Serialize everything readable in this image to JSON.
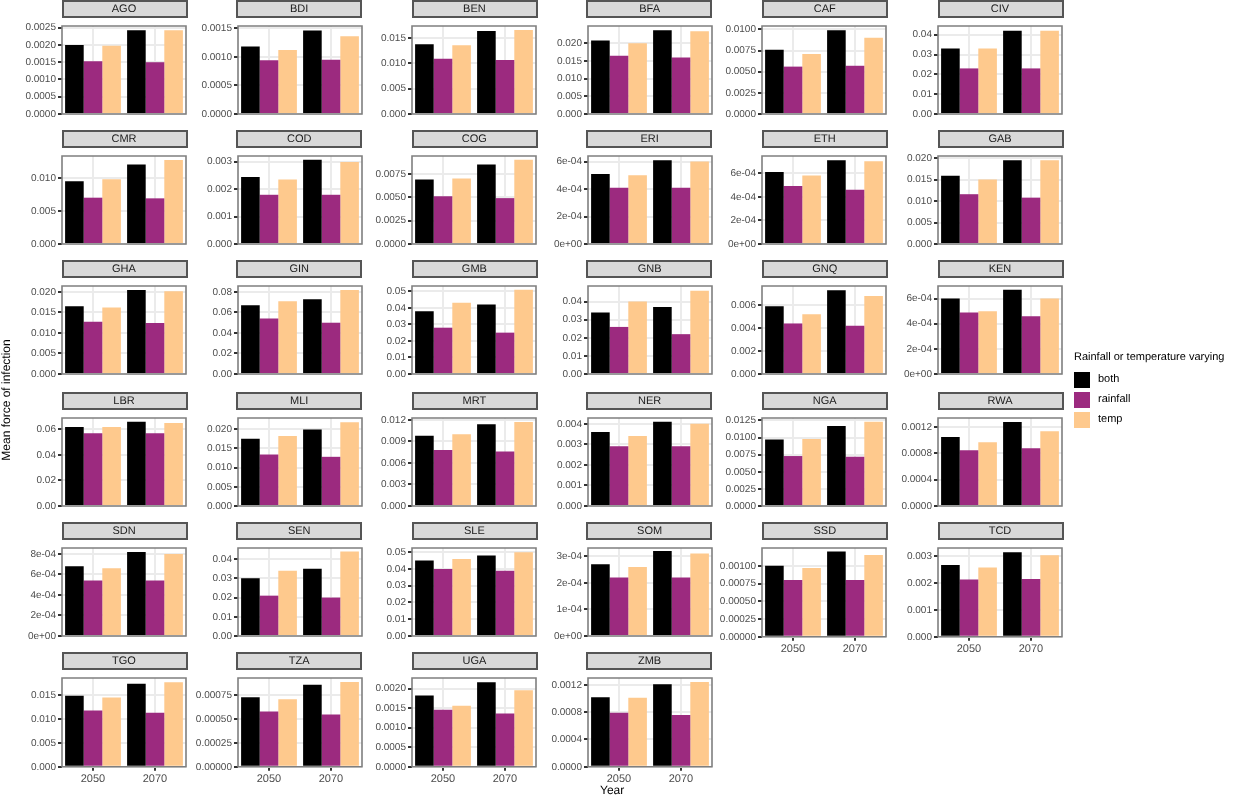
{
  "chart_data": [
    {
      "type": "bar",
      "title": "AGO",
      "annotations": [
        "Year",
        "Mean force of infection"
      ],
      "legend_title": "Rainfall or temperature varying",
      "legend": "right",
      "grid": true,
      "tick_labels": "y",
      "categories": [
        "2050",
        "2070"
      ],
      "ylim": [
        0,
        0.00255
      ],
      "yticks": [
        {
          "value": 0,
          "label": "0.0000"
        },
        {
          "value": 0.0005,
          "label": "0.0005"
        },
        {
          "value": 0.001,
          "label": "0.0010"
        },
        {
          "value": 0.0015,
          "label": "0.0015"
        },
        {
          "value": 0.002,
          "label": "0.0020"
        },
        {
          "value": 0.0025,
          "label": "0.0025"
        }
      ],
      "series": [
        {
          "name": "both",
          "color": "#000000",
          "values": [
            0.002,
            0.00243
          ]
        },
        {
          "name": "rainfall",
          "color": "#9c2a7f",
          "values": [
            0.00153,
            0.0015
          ]
        },
        {
          "name": "temp",
          "color": "#fec98d",
          "values": [
            0.00198,
            0.00243
          ]
        }
      ]
    },
    {
      "type": "bar",
      "title": "BDI",
      "grid": true,
      "tick_labels": "y",
      "categories": [
        "2050",
        "2070"
      ],
      "ylim": [
        0,
        0.00154
      ],
      "yticks": [
        {
          "value": 0,
          "label": "0.0000"
        },
        {
          "value": 0.0005,
          "label": "0.0005"
        },
        {
          "value": 0.001,
          "label": "0.0010"
        },
        {
          "value": 0.0015,
          "label": "0.0015"
        }
      ],
      "series": [
        {
          "color": "#000000",
          "values": [
            0.00118,
            0.00146
          ]
        },
        {
          "color": "#9c2a7f",
          "values": [
            0.00094,
            0.00095
          ]
        },
        {
          "color": "#fec98d",
          "values": [
            0.00112,
            0.00136
          ]
        }
      ]
    },
    {
      "type": "bar",
      "title": "BEN",
      "grid": true,
      "tick_labels": "y",
      "categories": [
        "2050",
        "2070"
      ],
      "ylim": [
        0,
        0.0174
      ],
      "yticks": [
        {
          "value": 0,
          "label": "0.000"
        },
        {
          "value": 0.005,
          "label": "0.005"
        },
        {
          "value": 0.01,
          "label": "0.010"
        },
        {
          "value": 0.015,
          "label": "0.015"
        }
      ],
      "series": [
        {
          "color": "#000000",
          "values": [
            0.0138,
            0.0164
          ]
        },
        {
          "color": "#9c2a7f",
          "values": [
            0.0109,
            0.0107
          ]
        },
        {
          "color": "#fec98d",
          "values": [
            0.0136,
            0.0166
          ]
        }
      ]
    },
    {
      "type": "bar",
      "title": "BFA",
      "grid": true,
      "tick_labels": "y",
      "categories": [
        "2050",
        "2070"
      ],
      "ylim": [
        0,
        0.0249
      ],
      "yticks": [
        {
          "value": 0,
          "label": "0.000"
        },
        {
          "value": 0.005,
          "label": "0.005"
        },
        {
          "value": 0.01,
          "label": "0.010"
        },
        {
          "value": 0.015,
          "label": "0.015"
        },
        {
          "value": 0.02,
          "label": "0.020"
        }
      ],
      "series": [
        {
          "color": "#000000",
          "values": [
            0.0208,
            0.0237
          ]
        },
        {
          "color": "#9c2a7f",
          "values": [
            0.0165,
            0.016
          ]
        },
        {
          "color": "#fec98d",
          "values": [
            0.02,
            0.0234
          ]
        }
      ]
    },
    {
      "type": "bar",
      "title": "CAF",
      "grid": true,
      "tick_labels": "y",
      "categories": [
        "2050",
        "2070"
      ],
      "ylim": [
        0,
        0.0104
      ],
      "yticks": [
        {
          "value": 0,
          "label": "0.0000"
        },
        {
          "value": 0.0025,
          "label": "0.0025"
        },
        {
          "value": 0.005,
          "label": "0.0050"
        },
        {
          "value": 0.0075,
          "label": "0.0075"
        },
        {
          "value": 0.01,
          "label": "0.0100"
        }
      ],
      "series": [
        {
          "color": "#000000",
          "values": [
            0.0076,
            0.0099
          ]
        },
        {
          "color": "#9c2a7f",
          "values": [
            0.0056,
            0.0057
          ]
        },
        {
          "color": "#fec98d",
          "values": [
            0.0071,
            0.009
          ]
        }
      ]
    },
    {
      "type": "bar",
      "title": "CIV",
      "grid": true,
      "tick_labels": "y",
      "categories": [
        "2050",
        "2070"
      ],
      "ylim": [
        0,
        0.0444
      ],
      "yticks": [
        {
          "value": 0,
          "label": "0.00"
        },
        {
          "value": 0.01,
          "label": "0.01"
        },
        {
          "value": 0.02,
          "label": "0.02"
        },
        {
          "value": 0.03,
          "label": "0.03"
        },
        {
          "value": 0.04,
          "label": "0.04"
        }
      ],
      "series": [
        {
          "color": "#000000",
          "values": [
            0.033,
            0.042
          ]
        },
        {
          "color": "#9c2a7f",
          "values": [
            0.023,
            0.023
          ]
        },
        {
          "color": "#fec98d",
          "values": [
            0.033,
            0.042
          ]
        }
      ]
    },
    {
      "type": "bar",
      "title": "CMR",
      "grid": true,
      "tick_labels": "y",
      "categories": [
        "2050",
        "2070"
      ],
      "ylim": [
        0,
        0.0133
      ],
      "yticks": [
        {
          "value": 0,
          "label": "0.000"
        },
        {
          "value": 0.005,
          "label": "0.005"
        },
        {
          "value": 0.01,
          "label": "0.010"
        }
      ],
      "series": [
        {
          "color": "#000000",
          "values": [
            0.0095,
            0.012
          ]
        },
        {
          "color": "#9c2a7f",
          "values": [
            0.007,
            0.0069
          ]
        },
        {
          "color": "#fec98d",
          "values": [
            0.0098,
            0.0127
          ]
        }
      ]
    },
    {
      "type": "bar",
      "title": "COD",
      "grid": true,
      "tick_labels": "y",
      "categories": [
        "2050",
        "2070"
      ],
      "ylim": [
        0,
        0.0032
      ],
      "yticks": [
        {
          "value": 0,
          "label": "0.000"
        },
        {
          "value": 0.001,
          "label": "0.001"
        },
        {
          "value": 0.002,
          "label": "0.002"
        },
        {
          "value": 0.003,
          "label": "0.003"
        }
      ],
      "series": [
        {
          "color": "#000000",
          "values": [
            0.00244,
            0.00306
          ]
        },
        {
          "color": "#9c2a7f",
          "values": [
            0.00179,
            0.00179
          ]
        },
        {
          "color": "#fec98d",
          "values": [
            0.00235,
            0.00298
          ]
        }
      ]
    },
    {
      "type": "bar",
      "title": "COG",
      "grid": true,
      "tick_labels": "y",
      "categories": [
        "2050",
        "2070"
      ],
      "ylim": [
        0,
        0.0094
      ],
      "yticks": [
        {
          "value": 0,
          "label": "0.0000"
        },
        {
          "value": 0.0025,
          "label": "0.0025"
        },
        {
          "value": 0.005,
          "label": "0.0050"
        },
        {
          "value": 0.0075,
          "label": "0.0075"
        }
      ],
      "series": [
        {
          "color": "#000000",
          "values": [
            0.0069,
            0.0085
          ]
        },
        {
          "color": "#9c2a7f",
          "values": [
            0.0051,
            0.0049
          ]
        },
        {
          "color": "#fec98d",
          "values": [
            0.007,
            0.009
          ]
        }
      ]
    },
    {
      "type": "bar",
      "title": "ERI",
      "grid": true,
      "tick_labels": "y",
      "categories": [
        "2050",
        "2070"
      ],
      "ylim": [
        0,
        0.00064
      ],
      "yticks": [
        {
          "value": 0,
          "label": "0e+00"
        },
        {
          "value": 0.0002,
          "label": "2e-04"
        },
        {
          "value": 0.0004,
          "label": "4e-04"
        },
        {
          "value": 0.0006,
          "label": "6e-04"
        }
      ],
      "series": [
        {
          "color": "#000000",
          "values": [
            0.00051,
            0.00061
          ]
        },
        {
          "color": "#9c2a7f",
          "values": [
            0.00041,
            0.00041
          ]
        },
        {
          "color": "#fec98d",
          "values": [
            0.0005,
            0.0006
          ]
        }
      ]
    },
    {
      "type": "bar",
      "title": "ETH",
      "grid": true,
      "tick_labels": "y",
      "categories": [
        "2050",
        "2070"
      ],
      "ylim": [
        0,
        0.000745
      ],
      "yticks": [
        {
          "value": 0,
          "label": "0e+00"
        },
        {
          "value": 0.0002,
          "label": "2e-04"
        },
        {
          "value": 0.0004,
          "label": "4e-04"
        },
        {
          "value": 0.0006,
          "label": "6e-04"
        }
      ],
      "series": [
        {
          "color": "#000000",
          "values": [
            0.00061,
            0.00071
          ]
        },
        {
          "color": "#9c2a7f",
          "values": [
            0.00049,
            0.00046
          ]
        },
        {
          "color": "#fec98d",
          "values": [
            0.00058,
            0.0007
          ]
        }
      ]
    },
    {
      "type": "bar",
      "title": "GAB",
      "grid": true,
      "tick_labels": "y",
      "categories": [
        "2050",
        "2070"
      ],
      "ylim": [
        0,
        0.0205
      ],
      "yticks": [
        {
          "value": 0,
          "label": "0.000"
        },
        {
          "value": 0.005,
          "label": "0.005"
        },
        {
          "value": 0.01,
          "label": "0.010"
        },
        {
          "value": 0.015,
          "label": "0.015"
        },
        {
          "value": 0.02,
          "label": "0.020"
        }
      ],
      "series": [
        {
          "color": "#000000",
          "values": [
            0.0159,
            0.0195
          ]
        },
        {
          "color": "#9c2a7f",
          "values": [
            0.0116,
            0.0108
          ]
        },
        {
          "color": "#fec98d",
          "values": [
            0.015,
            0.0195
          ]
        }
      ]
    },
    {
      "type": "bar",
      "title": "GHA",
      "grid": true,
      "tick_labels": "y",
      "categories": [
        "2050",
        "2070"
      ],
      "ylim": [
        0,
        0.0214
      ],
      "yticks": [
        {
          "value": 0,
          "label": "0.000"
        },
        {
          "value": 0.005,
          "label": "0.005"
        },
        {
          "value": 0.01,
          "label": "0.010"
        },
        {
          "value": 0.015,
          "label": "0.015"
        },
        {
          "value": 0.02,
          "label": "0.020"
        }
      ],
      "series": [
        {
          "color": "#000000",
          "values": [
            0.0165,
            0.0204
          ]
        },
        {
          "color": "#9c2a7f",
          "values": [
            0.0127,
            0.0124
          ]
        },
        {
          "color": "#fec98d",
          "values": [
            0.0162,
            0.0201
          ]
        }
      ]
    },
    {
      "type": "bar",
      "title": "GIN",
      "grid": true,
      "tick_labels": "y",
      "categories": [
        "2050",
        "2070"
      ],
      "ylim": [
        0,
        0.0858
      ],
      "yticks": [
        {
          "value": 0,
          "label": "0.00"
        },
        {
          "value": 0.02,
          "label": "0.02"
        },
        {
          "value": 0.04,
          "label": "0.04"
        },
        {
          "value": 0.06,
          "label": "0.06"
        },
        {
          "value": 0.08,
          "label": "0.08"
        }
      ],
      "series": [
        {
          "color": "#000000",
          "values": [
            0.067,
            0.073
          ]
        },
        {
          "color": "#9c2a7f",
          "values": [
            0.054,
            0.05
          ]
        },
        {
          "color": "#fec98d",
          "values": [
            0.071,
            0.082
          ]
        }
      ]
    },
    {
      "type": "bar",
      "title": "GMB",
      "grid": true,
      "tick_labels": "y",
      "categories": [
        "2050",
        "2070"
      ],
      "ylim": [
        0,
        0.0532
      ],
      "yticks": [
        {
          "value": 0,
          "label": "0.00"
        },
        {
          "value": 0.01,
          "label": "0.01"
        },
        {
          "value": 0.02,
          "label": "0.02"
        },
        {
          "value": 0.03,
          "label": "0.03"
        },
        {
          "value": 0.04,
          "label": "0.04"
        },
        {
          "value": 0.05,
          "label": "0.05"
        }
      ],
      "series": [
        {
          "color": "#000000",
          "values": [
            0.038,
            0.042
          ]
        },
        {
          "color": "#9c2a7f",
          "values": [
            0.028,
            0.025
          ]
        },
        {
          "color": "#fec98d",
          "values": [
            0.043,
            0.051
          ]
        }
      ]
    },
    {
      "type": "bar",
      "title": "GNB",
      "grid": true,
      "tick_labels": "y",
      "categories": [
        "2050",
        "2070"
      ],
      "ylim": [
        0,
        0.0486
      ],
      "yticks": [
        {
          "value": 0,
          "label": "0.00"
        },
        {
          "value": 0.01,
          "label": "0.01"
        },
        {
          "value": 0.02,
          "label": "0.02"
        },
        {
          "value": 0.03,
          "label": "0.03"
        },
        {
          "value": 0.04,
          "label": "0.04"
        }
      ],
      "series": [
        {
          "color": "#000000",
          "values": [
            0.034,
            0.037
          ]
        },
        {
          "color": "#9c2a7f",
          "values": [
            0.026,
            0.022
          ]
        },
        {
          "color": "#fec98d",
          "values": [
            0.04,
            0.046
          ]
        }
      ]
    },
    {
      "type": "bar",
      "title": "GNQ",
      "grid": true,
      "tick_labels": "y",
      "categories": [
        "2050",
        "2070"
      ],
      "ylim": [
        0,
        0.00766
      ],
      "yticks": [
        {
          "value": 0,
          "label": "0.000"
        },
        {
          "value": 0.002,
          "label": "0.002"
        },
        {
          "value": 0.004,
          "label": "0.004"
        },
        {
          "value": 0.006,
          "label": "0.006"
        }
      ],
      "series": [
        {
          "color": "#000000",
          "values": [
            0.0059,
            0.0073
          ]
        },
        {
          "color": "#9c2a7f",
          "values": [
            0.0044,
            0.0042
          ]
        },
        {
          "color": "#fec98d",
          "values": [
            0.0052,
            0.0068
          ]
        }
      ]
    },
    {
      "type": "bar",
      "title": "KEN",
      "grid": true,
      "tick_labels": "y",
      "categories": [
        "2050",
        "2070"
      ],
      "ylim": [
        0,
        0.0007
      ],
      "yticks": [
        {
          "value": 0,
          "label": "0e+00"
        },
        {
          "value": 0.0002,
          "label": "2e-04"
        },
        {
          "value": 0.0004,
          "label": "4e-04"
        },
        {
          "value": 0.0006,
          "label": "6e-04"
        }
      ],
      "series": [
        {
          "color": "#000000",
          "values": [
            0.0006,
            0.00067
          ]
        },
        {
          "color": "#9c2a7f",
          "values": [
            0.00049,
            0.00046
          ]
        },
        {
          "color": "#fec98d",
          "values": [
            0.0005,
            0.0006
          ]
        }
      ]
    },
    {
      "type": "bar",
      "title": "LBR",
      "grid": true,
      "tick_labels": "y",
      "categories": [
        "2050",
        "2070"
      ],
      "ylim": [
        0,
        0.069
      ],
      "yticks": [
        {
          "value": 0,
          "label": "0.00"
        },
        {
          "value": 0.02,
          "label": "0.02"
        },
        {
          "value": 0.04,
          "label": "0.04"
        },
        {
          "value": 0.06,
          "label": "0.06"
        }
      ],
      "series": [
        {
          "color": "#000000",
          "values": [
            0.062,
            0.066
          ]
        },
        {
          "color": "#9c2a7f",
          "values": [
            0.057,
            0.057
          ]
        },
        {
          "color": "#fec98d",
          "values": [
            0.062,
            0.065
          ]
        }
      ]
    },
    {
      "type": "bar",
      "title": "MLI",
      "grid": true,
      "tick_labels": "y",
      "categories": [
        "2050",
        "2070"
      ],
      "ylim": [
        0,
        0.0229
      ],
      "yticks": [
        {
          "value": 0,
          "label": "0.000"
        },
        {
          "value": 0.005,
          "label": "0.005"
        },
        {
          "value": 0.01,
          "label": "0.010"
        },
        {
          "value": 0.015,
          "label": "0.015"
        },
        {
          "value": 0.02,
          "label": "0.020"
        }
      ],
      "series": [
        {
          "color": "#000000",
          "values": [
            0.0175,
            0.0199
          ]
        },
        {
          "color": "#9c2a7f",
          "values": [
            0.0134,
            0.0128
          ]
        },
        {
          "color": "#fec98d",
          "values": [
            0.0182,
            0.0218
          ]
        }
      ]
    },
    {
      "type": "bar",
      "title": "MRT",
      "grid": true,
      "tick_labels": "y",
      "categories": [
        "2050",
        "2070"
      ],
      "ylim": [
        0,
        0.01226
      ],
      "yticks": [
        {
          "value": 0,
          "label": "0.000"
        },
        {
          "value": 0.003,
          "label": "0.003"
        },
        {
          "value": 0.006,
          "label": "0.006"
        },
        {
          "value": 0.009,
          "label": "0.009"
        },
        {
          "value": 0.012,
          "label": "0.012"
        }
      ],
      "series": [
        {
          "color": "#000000",
          "values": [
            0.0098,
            0.0114
          ]
        },
        {
          "color": "#9c2a7f",
          "values": [
            0.0078,
            0.0076
          ]
        },
        {
          "color": "#fec98d",
          "values": [
            0.01,
            0.0117
          ]
        }
      ]
    },
    {
      "type": "bar",
      "title": "NER",
      "grid": true,
      "tick_labels": "y",
      "categories": [
        "2050",
        "2070"
      ],
      "ylim": [
        0,
        0.00428
      ],
      "yticks": [
        {
          "value": 0,
          "label": "0.000"
        },
        {
          "value": 0.001,
          "label": "0.001"
        },
        {
          "value": 0.002,
          "label": "0.002"
        },
        {
          "value": 0.003,
          "label": "0.003"
        },
        {
          "value": 0.004,
          "label": "0.004"
        }
      ],
      "series": [
        {
          "color": "#000000",
          "values": [
            0.0036,
            0.0041
          ]
        },
        {
          "color": "#9c2a7f",
          "values": [
            0.0029,
            0.0029
          ]
        },
        {
          "color": "#fec98d",
          "values": [
            0.0034,
            0.004
          ]
        }
      ]
    },
    {
      "type": "bar",
      "title": "NGA",
      "grid": true,
      "tick_labels": "y",
      "categories": [
        "2050",
        "2070"
      ],
      "ylim": [
        0,
        0.01286
      ],
      "yticks": [
        {
          "value": 0,
          "label": "0.0000"
        },
        {
          "value": 0.0025,
          "label": "0.0025"
        },
        {
          "value": 0.005,
          "label": "0.0050"
        },
        {
          "value": 0.0075,
          "label": "0.0075"
        },
        {
          "value": 0.01,
          "label": "0.0100"
        },
        {
          "value": 0.0125,
          "label": "0.0125"
        }
      ],
      "series": [
        {
          "color": "#000000",
          "values": [
            0.0097,
            0.0117
          ]
        },
        {
          "color": "#9c2a7f",
          "values": [
            0.0073,
            0.0072
          ]
        },
        {
          "color": "#fec98d",
          "values": [
            0.0098,
            0.0123
          ]
        }
      ]
    },
    {
      "type": "bar",
      "title": "RWA",
      "grid": true,
      "tick_labels": "y",
      "categories": [
        "2050",
        "2070"
      ],
      "ylim": [
        0,
        0.00134
      ],
      "yticks": [
        {
          "value": 0,
          "label": "0.0000"
        },
        {
          "value": 0.0004,
          "label": "0.0004"
        },
        {
          "value": 0.0008,
          "label": "0.0008"
        },
        {
          "value": 0.0012,
          "label": "0.0012"
        }
      ],
      "series": [
        {
          "color": "#000000",
          "values": [
            0.00105,
            0.00128
          ]
        },
        {
          "color": "#9c2a7f",
          "values": [
            0.00085,
            0.00088
          ]
        },
        {
          "color": "#fec98d",
          "values": [
            0.00097,
            0.00114
          ]
        }
      ]
    },
    {
      "type": "bar",
      "title": "SDN",
      "grid": true,
      "tick_labels": "y",
      "categories": [
        "2050",
        "2070"
      ],
      "ylim": [
        0,
        0.000858
      ],
      "yticks": [
        {
          "value": 0,
          "label": "0e+00"
        },
        {
          "value": 0.0002,
          "label": "2e-04"
        },
        {
          "value": 0.0004,
          "label": "4e-04"
        },
        {
          "value": 0.0006,
          "label": "6e-04"
        },
        {
          "value": 0.0008,
          "label": "8e-04"
        }
      ],
      "series": [
        {
          "color": "#000000",
          "values": [
            0.00068,
            0.00082
          ]
        },
        {
          "color": "#9c2a7f",
          "values": [
            0.00054,
            0.00054
          ]
        },
        {
          "color": "#fec98d",
          "values": [
            0.00066,
            0.0008
          ]
        }
      ]
    },
    {
      "type": "bar",
      "title": "SEN",
      "grid": true,
      "tick_labels": "y",
      "categories": [
        "2050",
        "2070"
      ],
      "ylim": [
        0,
        0.0458
      ],
      "yticks": [
        {
          "value": 0,
          "label": "0.00"
        },
        {
          "value": 0.01,
          "label": "0.01"
        },
        {
          "value": 0.02,
          "label": "0.02"
        },
        {
          "value": 0.03,
          "label": "0.03"
        },
        {
          "value": 0.04,
          "label": "0.04"
        }
      ],
      "series": [
        {
          "color": "#000000",
          "values": [
            0.03,
            0.035
          ]
        },
        {
          "color": "#9c2a7f",
          "values": [
            0.021,
            0.02
          ]
        },
        {
          "color": "#fec98d",
          "values": [
            0.034,
            0.044
          ]
        }
      ]
    },
    {
      "type": "bar",
      "title": "SLE",
      "grid": true,
      "tick_labels": "y",
      "categories": [
        "2050",
        "2070"
      ],
      "ylim": [
        0,
        0.0525
      ],
      "yticks": [
        {
          "value": 0,
          "label": "0.00"
        },
        {
          "value": 0.01,
          "label": "0.01"
        },
        {
          "value": 0.02,
          "label": "0.02"
        },
        {
          "value": 0.03,
          "label": "0.03"
        },
        {
          "value": 0.04,
          "label": "0.04"
        },
        {
          "value": 0.05,
          "label": "0.05"
        }
      ],
      "series": [
        {
          "color": "#000000",
          "values": [
            0.045,
            0.048
          ]
        },
        {
          "color": "#9c2a7f",
          "values": [
            0.04,
            0.039
          ]
        },
        {
          "color": "#fec98d",
          "values": [
            0.046,
            0.05
          ]
        }
      ]
    },
    {
      "type": "bar",
      "title": "SOM",
      "grid": true,
      "tick_labels": "y",
      "categories": [
        "2050",
        "2070"
      ],
      "ylim": [
        0,
        0.000331
      ],
      "yticks": [
        {
          "value": 0,
          "label": "0e+00"
        },
        {
          "value": 0.0001,
          "label": "1e-04"
        },
        {
          "value": 0.0002,
          "label": "2e-04"
        },
        {
          "value": 0.0003,
          "label": "3e-04"
        }
      ],
      "series": [
        {
          "color": "#000000",
          "values": [
            0.00027,
            0.00032
          ]
        },
        {
          "color": "#9c2a7f",
          "values": [
            0.00022,
            0.00022
          ]
        },
        {
          "color": "#fec98d",
          "values": [
            0.00026,
            0.00031
          ]
        }
      ]
    },
    {
      "type": "bar",
      "title": "SSD",
      "grid": true,
      "categories": [
        "2050",
        "2070"
      ],
      "ylim": [
        0,
        0.00125
      ],
      "yticks": [
        {
          "value": 0,
          "label": "0.00000"
        },
        {
          "value": 0.00025,
          "label": "0.00025"
        },
        {
          "value": 0.0005,
          "label": "0.00050"
        },
        {
          "value": 0.00075,
          "label": "0.00075"
        },
        {
          "value": 0.001,
          "label": "0.00100"
        }
      ],
      "series": [
        {
          "color": "#000000",
          "values": [
            0.001,
            0.0012
          ]
        },
        {
          "color": "#9c2a7f",
          "values": [
            0.0008,
            0.0008
          ]
        },
        {
          "color": "#fec98d",
          "values": [
            0.00097,
            0.00115
          ]
        }
      ]
    },
    {
      "type": "bar",
      "title": "TCD",
      "grid": true,
      "categories": [
        "2050",
        "2070"
      ],
      "ylim": [
        0,
        0.00329
      ],
      "yticks": [
        {
          "value": 0,
          "label": "0.000"
        },
        {
          "value": 0.001,
          "label": "0.001"
        },
        {
          "value": 0.002,
          "label": "0.002"
        },
        {
          "value": 0.003,
          "label": "0.003"
        }
      ],
      "series": [
        {
          "color": "#000000",
          "values": [
            0.00266,
            0.00313
          ]
        },
        {
          "color": "#9c2a7f",
          "values": [
            0.00212,
            0.00214
          ]
        },
        {
          "color": "#fec98d",
          "values": [
            0.00257,
            0.00302
          ]
        }
      ]
    },
    {
      "type": "bar",
      "title": "TGO",
      "grid": true,
      "categories": [
        "2050",
        "2070"
      ],
      "ylim": [
        0,
        0.0186
      ],
      "yticks": [
        {
          "value": 0,
          "label": "0.000"
        },
        {
          "value": 0.005,
          "label": "0.005"
        },
        {
          "value": 0.01,
          "label": "0.010"
        },
        {
          "value": 0.015,
          "label": "0.015"
        }
      ],
      "series": [
        {
          "color": "#000000",
          "values": [
            0.0149,
            0.0174
          ]
        },
        {
          "color": "#9c2a7f",
          "values": [
            0.0118,
            0.0113
          ]
        },
        {
          "color": "#fec98d",
          "values": [
            0.0145,
            0.0177
          ]
        }
      ]
    },
    {
      "type": "bar",
      "title": "TZA",
      "grid": true,
      "categories": [
        "2050",
        "2070"
      ],
      "ylim": [
        0,
        0.000932
      ],
      "yticks": [
        {
          "value": 0,
          "label": "0.00000"
        },
        {
          "value": 0.00025,
          "label": "0.00025"
        },
        {
          "value": 0.0005,
          "label": "0.00050"
        },
        {
          "value": 0.00075,
          "label": "0.00075"
        }
      ],
      "series": [
        {
          "color": "#000000",
          "values": [
            0.00073,
            0.00086
          ]
        },
        {
          "color": "#9c2a7f",
          "values": [
            0.00058,
            0.00055
          ]
        },
        {
          "color": "#fec98d",
          "values": [
            0.00071,
            0.00089
          ]
        }
      ]
    },
    {
      "type": "bar",
      "title": "UGA",
      "grid": true,
      "categories": [
        "2050",
        "2070"
      ],
      "ylim": [
        0,
        0.00227
      ],
      "yticks": [
        {
          "value": 0,
          "label": "0.0000"
        },
        {
          "value": 0.0005,
          "label": "0.0005"
        },
        {
          "value": 0.001,
          "label": "0.0010"
        },
        {
          "value": 0.0015,
          "label": "0.0015"
        },
        {
          "value": 0.002,
          "label": "0.0020"
        }
      ],
      "series": [
        {
          "color": "#000000",
          "values": [
            0.00182,
            0.00216
          ]
        },
        {
          "color": "#9c2a7f",
          "values": [
            0.00146,
            0.00136
          ]
        },
        {
          "color": "#fec98d",
          "values": [
            0.00156,
            0.00196
          ]
        }
      ]
    },
    {
      "type": "bar",
      "title": "ZMB",
      "grid": true,
      "categories": [
        "2050",
        "2070"
      ],
      "ylim": [
        0,
        0.0013
      ],
      "yticks": [
        {
          "value": 0,
          "label": "0.0000"
        },
        {
          "value": 0.0004,
          "label": "0.0004"
        },
        {
          "value": 0.0008,
          "label": "0.0008"
        },
        {
          "value": 0.0012,
          "label": "0.0012"
        }
      ],
      "series": [
        {
          "color": "#000000",
          "values": [
            0.00102,
            0.00121
          ]
        },
        {
          "color": "#9c2a7f",
          "values": [
            0.00079,
            0.00076
          ]
        },
        {
          "color": "#fec98d",
          "values": [
            0.00101,
            0.00124
          ]
        }
      ]
    }
  ]
}
